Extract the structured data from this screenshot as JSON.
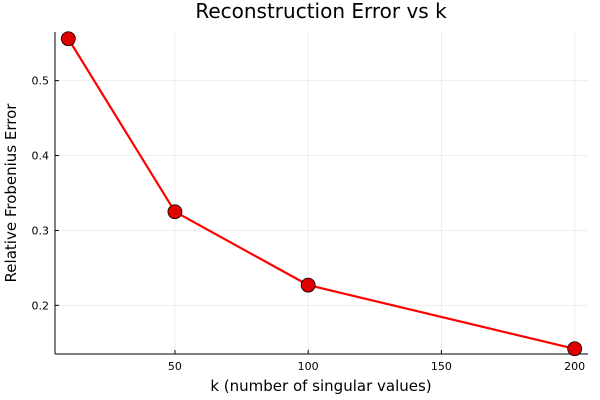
{
  "chart_data": {
    "type": "line",
    "title": "Reconstruction Error vs k",
    "xlabel": "k (number of singular values)",
    "ylabel": "Relative Frobenius Error",
    "x": [
      10,
      50,
      100,
      200
    ],
    "series": [
      {
        "values": [
          0.556,
          0.325,
          0.227,
          0.142
        ]
      }
    ],
    "xlim": [
      5,
      205
    ],
    "ylim": [
      0.135,
      0.565
    ],
    "xticks": [
      50,
      100,
      150,
      200
    ],
    "yticks": [
      0.2,
      0.3,
      0.4,
      0.5
    ],
    "xtick_labels": [
      "50",
      "100",
      "150",
      "200"
    ],
    "ytick_labels": [
      "0.2",
      "0.3",
      "0.4",
      "0.5"
    ],
    "grid": true,
    "legend": "none",
    "colors": {
      "line": "#ff0000",
      "marker_fill": "#e00000",
      "marker_edge": "#000000",
      "axis": "#000000",
      "grid": "#ededed"
    }
  }
}
